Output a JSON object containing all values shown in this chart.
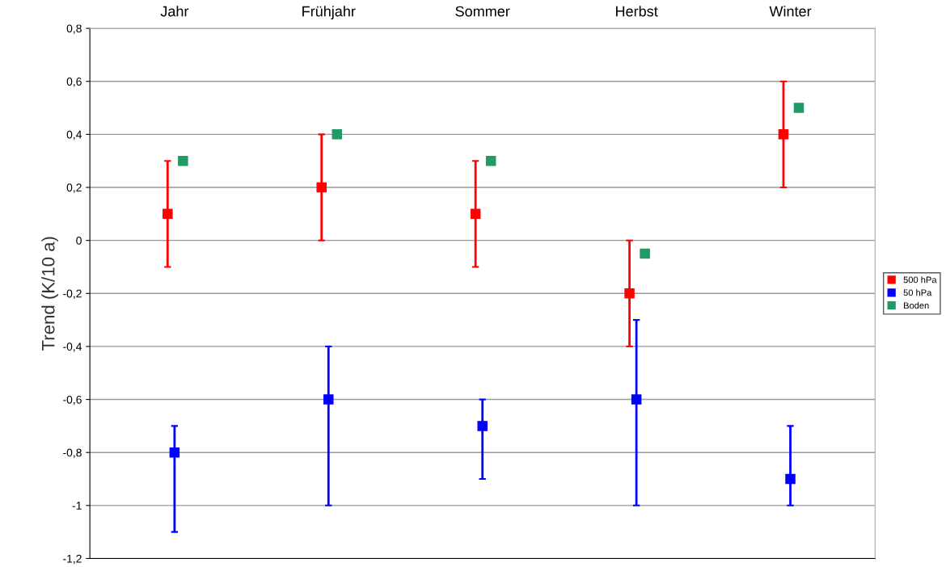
{
  "chart_data": {
    "type": "scatter",
    "ylabel": "Trend (K/10 a)",
    "categories": [
      "Jahr",
      "Frühjahr",
      "Sommer",
      "Herbst",
      "Winter"
    ],
    "series": [
      {
        "name": "500 hPa",
        "color": "#ff0000",
        "values": [
          0.1,
          0.2,
          0.1,
          -0.2,
          0.4
        ],
        "errors": [
          0.2,
          0.2,
          0.2,
          0.2,
          0.2
        ]
      },
      {
        "name": "50 hPa",
        "color": "#0000ff",
        "values": [
          -0.8,
          -0.6,
          -0.7,
          -0.6,
          -0.9
        ],
        "errors": [
          [
            -1.1,
            -0.7
          ],
          [
            -1.0,
            -0.4
          ],
          [
            -0.9,
            -0.6
          ],
          [
            -1.0,
            -0.3
          ],
          [
            -1.0,
            -0.7
          ]
        ]
      },
      {
        "name": "Boden",
        "color": "#229966",
        "values": [
          0.3,
          0.4,
          0.3,
          -0.05,
          0.5
        ]
      }
    ],
    "ylim": [
      -1.2,
      0.8
    ],
    "yticks": [
      {
        "value": -1.2,
        "label": "-1,2"
      },
      -1,
      {
        "value": -0.8,
        "label": "-0,8"
      },
      {
        "value": -0.6,
        "label": "-0,6"
      },
      {
        "value": -0.4,
        "label": "-0,4"
      },
      {
        "value": -0.2,
        "label": "-0,2"
      },
      0,
      {
        "value": 0.2,
        "label": "0,2"
      },
      {
        "value": 0.4,
        "label": "0,4"
      },
      {
        "value": 0.6,
        "label": "0,6"
      },
      {
        "value": 0.8,
        "label": "0,8"
      }
    ],
    "grid": "y",
    "legend": "right",
    "marker": "square"
  }
}
